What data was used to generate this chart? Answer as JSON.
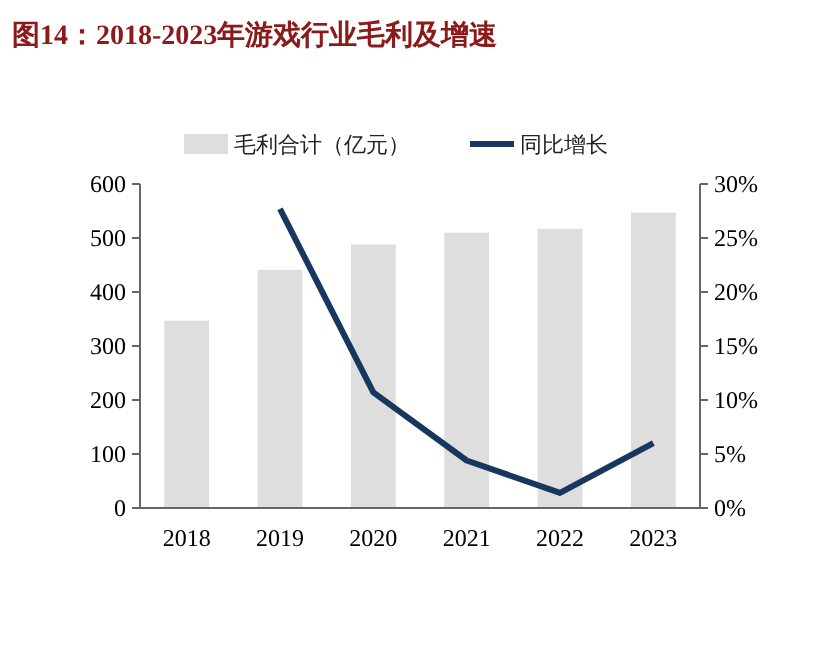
{
  "chart_data": {
    "type": "bar",
    "title": "图14：2018-2023年游戏行业毛利及增速",
    "categories": [
      "2018",
      "2019",
      "2020",
      "2021",
      "2022",
      "2023"
    ],
    "series": [
      {
        "name": "毛利合计（亿元）",
        "color": "#dedede",
        "values": [
          347,
          441,
          488,
          510,
          517,
          547
        ]
      },
      {
        "name": "同比增长",
        "type": "line",
        "axis": "y2",
        "color": "#17375e",
        "values": [
          null,
          27.7,
          10.7,
          4.4,
          1.4,
          6.0
        ]
      }
    ],
    "ylim": [
      0,
      600
    ],
    "yticks": [
      0,
      100,
      200,
      300,
      400,
      500,
      600
    ],
    "y2lim": [
      0,
      30
    ],
    "y2ticks": [
      {
        "value": 0,
        "label": "0%"
      },
      {
        "value": 5,
        "label": "5%"
      },
      {
        "value": 10,
        "label": "10%"
      },
      {
        "value": 15,
        "label": "15%"
      },
      {
        "value": 20,
        "label": "20%"
      },
      {
        "value": 25,
        "label": "25%"
      },
      {
        "value": 30,
        "label": "30%"
      }
    ],
    "legend": "top",
    "grid": false,
    "marker": "none",
    "line_style": "solid"
  }
}
